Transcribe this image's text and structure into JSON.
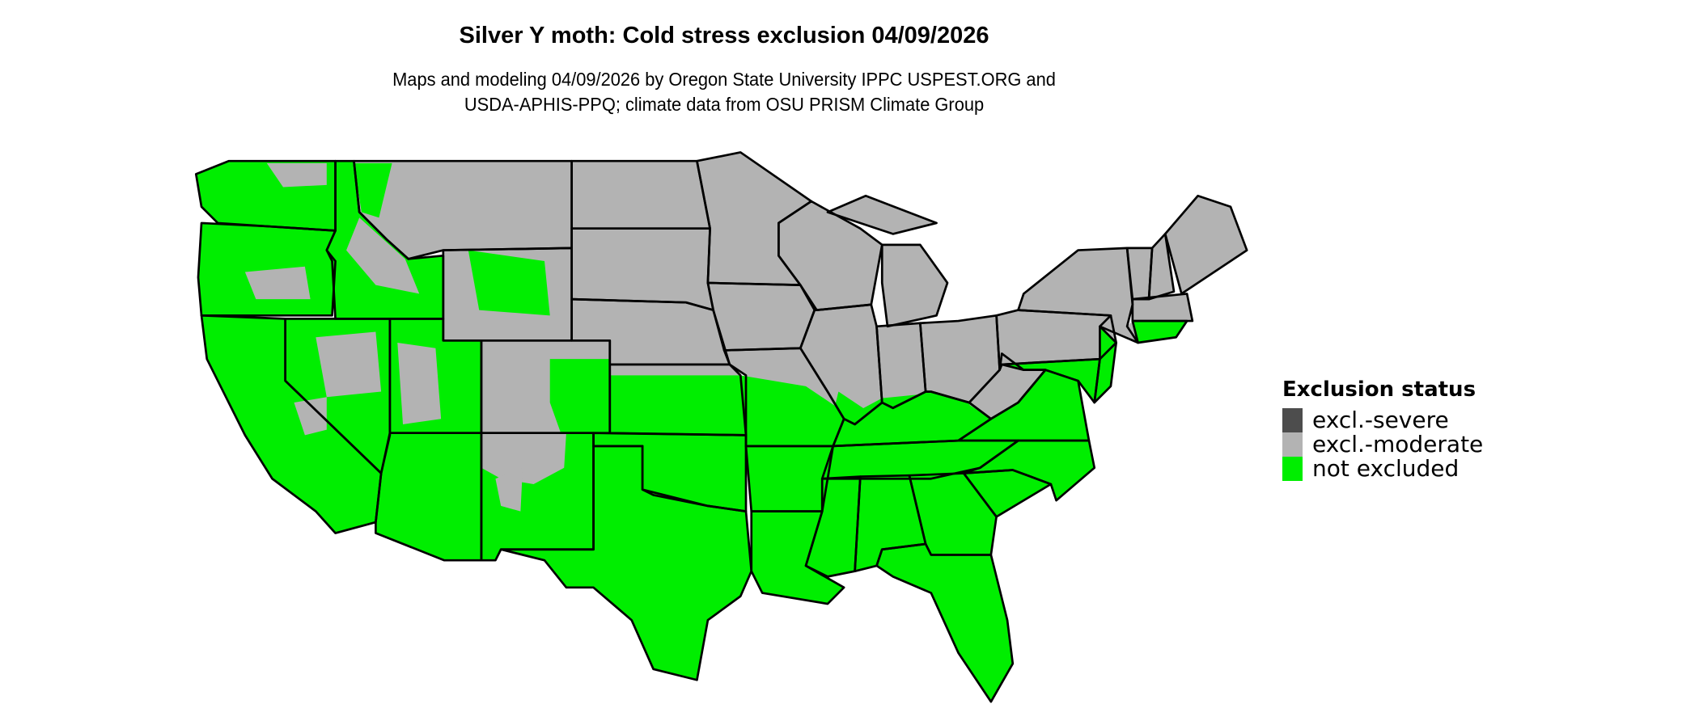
{
  "title": "Silver Y moth: Cold stress exclusion 04/09/2026",
  "subtitle_lines": [
    "Maps and modeling 04/09/2026 by Oregon State University IPPC USPEST.ORG and",
    "USDA-APHIS-PPQ; climate data from OSU PRISM Climate Group"
  ],
  "legend": {
    "title": "Exclusion status",
    "items": [
      {
        "label": "excl.-severe",
        "color": "#4d4d4d"
      },
      {
        "label": "excl.-moderate",
        "color": "#b3b3b3"
      },
      {
        "label": "not excluded",
        "color": "#00ee00"
      }
    ]
  },
  "colors": {
    "border": "#000000",
    "severe": "#4d4d4d",
    "moderate": "#b3b3b3",
    "not_excluded": "#00ee00"
  },
  "region_status": {
    "WA": "not_excluded",
    "OR": "not_excluded",
    "CA": "not_excluded",
    "NV": "not_excluded",
    "ID": "not_excluded",
    "MT": "moderate",
    "WY": "moderate",
    "UT": "not_excluded",
    "CO": "moderate",
    "AZ": "not_excluded",
    "NM": "not_excluded",
    "ND": "moderate",
    "SD": "moderate",
    "NE": "moderate",
    "KS": "moderate",
    "OK": "not_excluded",
    "TX": "not_excluded",
    "MN": "moderate",
    "IA": "moderate",
    "MO": "moderate",
    "AR": "not_excluded",
    "LA": "not_excluded",
    "WI": "moderate",
    "IL": "moderate",
    "MI": "moderate",
    "MIU": "moderate",
    "IN": "moderate",
    "OH": "moderate",
    "KY": "not_excluded",
    "TN": "not_excluded",
    "MS": "not_excluded",
    "AL": "not_excluded",
    "GA": "not_excluded",
    "FL": "not_excluded",
    "SC": "not_excluded",
    "NC": "not_excluded",
    "VA": "not_excluded",
    "WV": "moderate",
    "PA": "moderate",
    "MD": "not_excluded",
    "NJ": "not_excluded",
    "NY": "moderate",
    "VT": "moderate",
    "NH": "moderate",
    "ME": "moderate",
    "MA": "moderate",
    "CT": "not_excluded"
  }
}
